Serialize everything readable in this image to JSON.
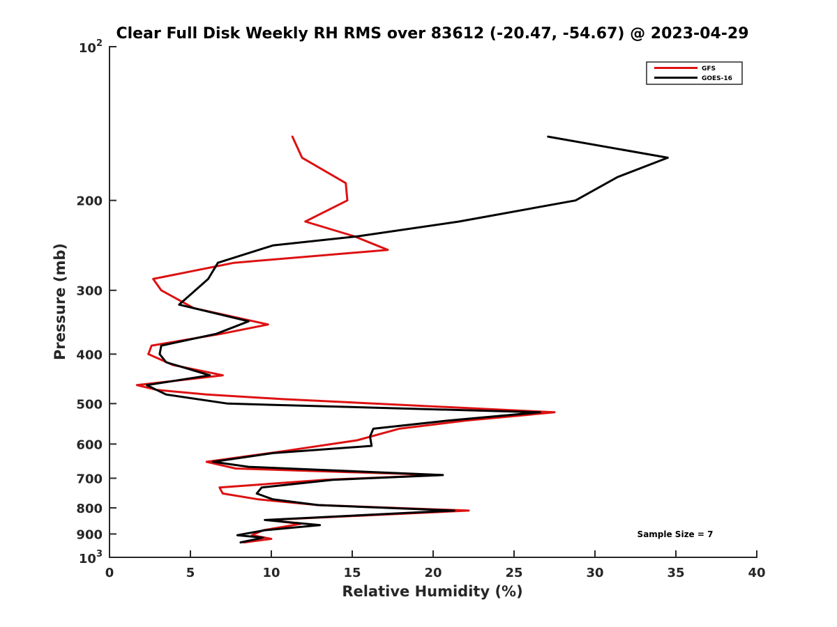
{
  "chart_data": {
    "type": "line",
    "title": "Clear Full Disk Weekly RH RMS over 83612 (-20.47, -54.67) @ 2023-04-29",
    "xlabel": "Relative Humidity (%)",
    "ylabel": "Pressure (mb)",
    "xlim": [
      0,
      40
    ],
    "ylim": [
      100,
      1000
    ],
    "yscale": "log",
    "y_reversed": true,
    "grid": false,
    "legend_position": "top-right",
    "x_ticks": [
      "0",
      "5",
      "10",
      "15",
      "20",
      "25",
      "30",
      "35",
      "40"
    ],
    "y_ticks": [
      {
        "value": 200,
        "label": "200"
      },
      {
        "value": 300,
        "label": "300"
      },
      {
        "value": 400,
        "label": "400"
      },
      {
        "value": 500,
        "label": "500"
      },
      {
        "value": 600,
        "label": "600"
      },
      {
        "value": 700,
        "label": "700"
      },
      {
        "value": 800,
        "label": "800"
      },
      {
        "value": 900,
        "label": "900"
      }
    ],
    "y_decade_ticks": [
      {
        "value": 100,
        "base": "10",
        "exp": "2"
      },
      {
        "value": 1000,
        "base": "10",
        "exp": "3"
      }
    ],
    "annotation": "Sample Size = 7",
    "series": [
      {
        "name": "GFS",
        "color": "#dd1111",
        "points": [
          [
            11.3,
            150
          ],
          [
            11.9,
            165
          ],
          [
            14.6,
            185
          ],
          [
            14.7,
            200
          ],
          [
            12.1,
            220
          ],
          [
            15.1,
            235
          ],
          [
            17.2,
            250
          ],
          [
            7.7,
            265
          ],
          [
            2.7,
            285
          ],
          [
            3.2,
            300
          ],
          [
            5.2,
            325
          ],
          [
            9.8,
            350
          ],
          [
            6.9,
            365
          ],
          [
            2.6,
            385
          ],
          [
            2.4,
            400
          ],
          [
            3.9,
            420
          ],
          [
            7.0,
            440
          ],
          [
            1.7,
            460
          ],
          [
            2.9,
            470
          ],
          [
            6.0,
            480
          ],
          [
            10.7,
            490
          ],
          [
            27.5,
            520
          ],
          [
            22.0,
            540
          ],
          [
            17.9,
            560
          ],
          [
            15.3,
            590
          ],
          [
            10.7,
            620
          ],
          [
            6.0,
            650
          ],
          [
            7.8,
            670
          ],
          [
            20.5,
            690
          ],
          [
            13.3,
            705
          ],
          [
            6.8,
            730
          ],
          [
            7.0,
            750
          ],
          [
            9.2,
            770
          ],
          [
            12.9,
            790
          ],
          [
            22.2,
            810
          ],
          [
            9.8,
            845
          ],
          [
            11.8,
            860
          ],
          [
            9.5,
            885
          ],
          [
            8.8,
            905
          ],
          [
            10.0,
            920
          ],
          [
            8.3,
            935
          ]
        ]
      },
      {
        "name": "GOES-16",
        "color": "#000000",
        "points": [
          [
            27.1,
            150
          ],
          [
            34.5,
            165
          ],
          [
            31.4,
            180
          ],
          [
            28.8,
            200
          ],
          [
            21.6,
            220
          ],
          [
            15.4,
            235
          ],
          [
            10.1,
            245
          ],
          [
            6.7,
            265
          ],
          [
            6.1,
            285
          ],
          [
            5.3,
            300
          ],
          [
            4.3,
            320
          ],
          [
            8.6,
            345
          ],
          [
            6.6,
            365
          ],
          [
            3.2,
            385
          ],
          [
            3.1,
            400
          ],
          [
            3.5,
            415
          ],
          [
            6.2,
            440
          ],
          [
            2.3,
            460
          ],
          [
            3.5,
            480
          ],
          [
            7.3,
            500
          ],
          [
            26.6,
            520
          ],
          [
            20.9,
            540
          ],
          [
            16.3,
            560
          ],
          [
            16.1,
            580
          ],
          [
            16.2,
            605
          ],
          [
            10.1,
            625
          ],
          [
            6.4,
            650
          ],
          [
            8.6,
            665
          ],
          [
            20.6,
            690
          ],
          [
            13.8,
            705
          ],
          [
            9.4,
            730
          ],
          [
            9.1,
            750
          ],
          [
            10.1,
            770
          ],
          [
            12.9,
            790
          ],
          [
            21.3,
            810
          ],
          [
            9.6,
            845
          ],
          [
            13.0,
            865
          ],
          [
            9.6,
            885
          ],
          [
            7.9,
            905
          ],
          [
            9.5,
            915
          ],
          [
            8.1,
            935
          ]
        ]
      }
    ]
  }
}
